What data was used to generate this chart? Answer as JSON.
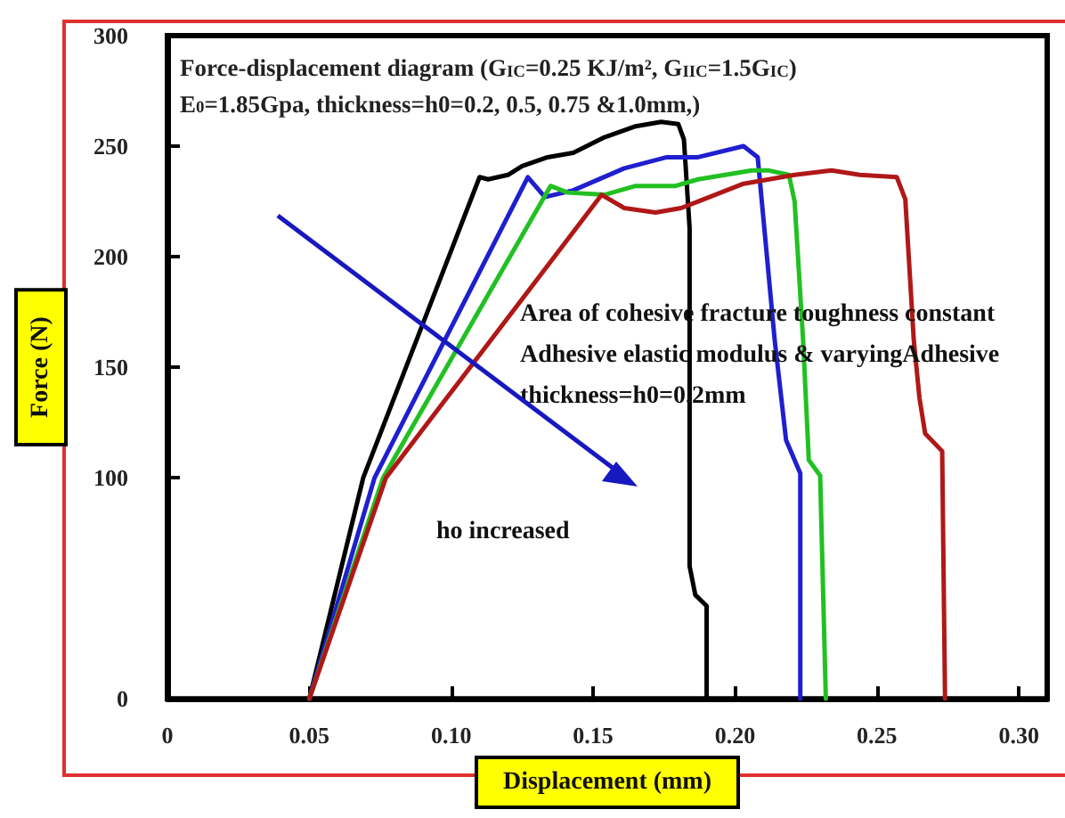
{
  "chart_data": {
    "type": "line",
    "title": "Force-displacement diagram (G$_{IC}$=0.25 KJ/m², G$_{IIC}$=1.5G$_{IC}$)",
    "subtitle": "E$_{0}$=1.85Gpa, thickness=h0=0.2, 0.5, 0.75 &1.0mm,)",
    "xlabel": "Displacement (mm)",
    "ylabel": "Force (N)",
    "annotations": [
      "Area of cohesive fracture toughness constant Adhesive elastic modulus & varyingAdhesive thickness=h0=0.2mm",
      "ho increased"
    ],
    "xlim": [
      0,
      0.31
    ],
    "xticks": [
      0,
      0.05,
      {
        "value": 0.1,
        "label": "0.10"
      },
      0.15,
      {
        "value": 0.2,
        "label": "0.20"
      },
      0.25,
      {
        "value": 0.3,
        "label": "0.30"
      }
    ],
    "ylim": [
      0,
      300
    ],
    "yticks": [
      0,
      100,
      150,
      200,
      250,
      300
    ],
    "grid": false,
    "marker": "none",
    "line_style": "solid",
    "series": [
      {
        "color": "#000000",
        "x": [
          0.05,
          0.069,
          0.11,
          0.113,
          0.12,
          0.125,
          0.134,
          0.143,
          0.154,
          0.165,
          0.174,
          0.18,
          0.182,
          0.184,
          0.184,
          0.186,
          0.19,
          0.19
        ],
        "values": [
          0,
          100,
          236,
          235,
          237,
          241,
          245,
          247,
          254,
          259,
          261,
          260,
          253,
          213,
          60,
          47,
          42,
          0
        ]
      },
      {
        "color": "#1f1fd0",
        "x": [
          0.05,
          0.073,
          0.127,
          0.133,
          0.143,
          0.161,
          0.176,
          0.187,
          0.203,
          0.208,
          0.214,
          0.218,
          0.223,
          0.223
        ],
        "values": [
          0,
          100,
          236,
          227,
          230,
          240,
          245,
          245,
          250,
          245,
          162,
          117,
          102,
          0
        ]
      },
      {
        "color": "#22c022",
        "x": [
          0.05,
          0.076,
          0.135,
          0.141,
          0.154,
          0.165,
          0.179,
          0.187,
          0.206,
          0.212,
          0.219,
          0.221,
          0.224,
          0.226,
          0.23,
          0.232
        ],
        "values": [
          0,
          100,
          232,
          229,
          228,
          232,
          232,
          235,
          239,
          239,
          237,
          225,
          162,
          108,
          101,
          0
        ]
      },
      {
        "color": "#b01818",
        "x": [
          0.05,
          0.077,
          0.153,
          0.161,
          0.172,
          0.181,
          0.187,
          0.203,
          0.221,
          0.234,
          0.244,
          0.257,
          0.26,
          0.263,
          0.265,
          0.267,
          0.273,
          0.274
        ],
        "values": [
          0,
          100,
          228,
          222,
          220,
          222,
          225,
          233,
          237,
          239,
          237,
          236,
          226,
          162,
          136,
          120,
          112,
          0
        ]
      }
    ]
  }
}
